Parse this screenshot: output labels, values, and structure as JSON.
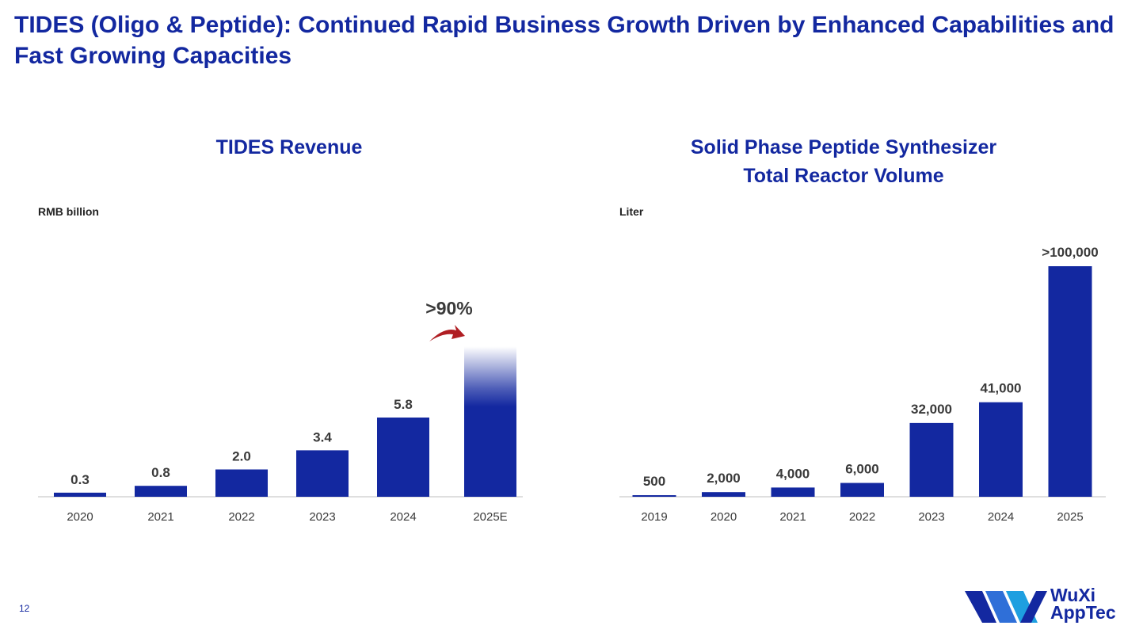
{
  "title": "TIDES (Oligo & Peptide): Continued Rapid Business Growth Driven by Enhanced Capabilities and Fast Growing Capacities",
  "page_number": "12",
  "logo": {
    "line1": "WuXi",
    "line2": "AppTec"
  },
  "colors": {
    "bar": "#1328A0",
    "arrow": "#B01E23",
    "title": "#1328A0"
  },
  "chart_data": [
    {
      "type": "bar",
      "title": "TIDES Revenue",
      "unit_label": "RMB billion",
      "categories": [
        "2020",
        "2021",
        "2022",
        "2023",
        "2024",
        "2025E"
      ],
      "values": [
        0.3,
        0.8,
        2.0,
        3.4,
        5.8,
        null
      ],
      "value_labels": [
        "0.3",
        "0.8",
        "2.0",
        "3.4",
        "5.8",
        ""
      ],
      "projected_category": "2025E",
      "projected_value_approx": 11.0,
      "growth_annotation": ">90%",
      "ylim": [
        0,
        11.5
      ]
    },
    {
      "type": "bar",
      "title_lines": [
        "Solid Phase Peptide Synthesizer",
        "Total Reactor Volume"
      ],
      "unit_label": "Liter",
      "categories": [
        "2019",
        "2020",
        "2021",
        "2022",
        "2023",
        "2024",
        "2025"
      ],
      "values": [
        500,
        2000,
        4000,
        6000,
        32000,
        41000,
        100000
      ],
      "value_labels": [
        "500",
        "2,000",
        "4,000",
        "6,000",
        "32,000",
        "41,000",
        ">100,000"
      ],
      "ylim": [
        0,
        100000
      ]
    }
  ]
}
